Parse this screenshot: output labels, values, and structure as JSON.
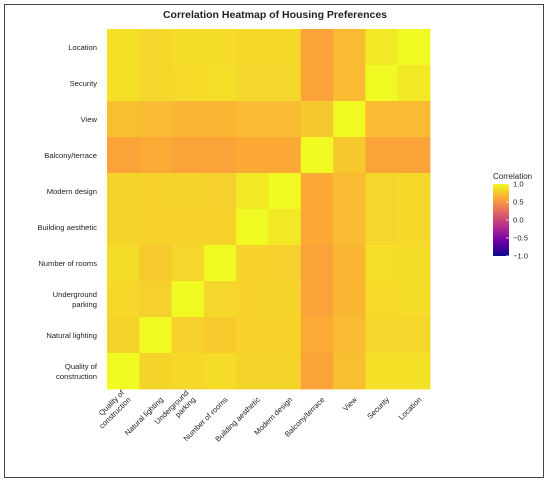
{
  "chart_data": {
    "type": "heatmap",
    "title": "Correlation Heatmap of Housing Preferences",
    "xlabel": "",
    "ylabel": "",
    "x_categories": [
      "Quality of construction",
      "Natural lighting",
      "Underground parking",
      "Number of rooms",
      "Building aesthetic",
      "Modern design",
      "Balcony/terrace",
      "View",
      "Security",
      "Location"
    ],
    "x_tick_lines": [
      [
        "Quality of",
        "construction"
      ],
      [
        "Natural lighting"
      ],
      [
        "Underground",
        "parking"
      ],
      [
        "Number of rooms"
      ],
      [
        "Building aesthetic"
      ],
      [
        "Modern design"
      ],
      [
        "Balcony/terrace"
      ],
      [
        "View"
      ],
      [
        "Security"
      ],
      [
        "Location"
      ]
    ],
    "y_categories_top_to_bottom": [
      "Location",
      "Security",
      "View",
      "Balcony/terrace",
      "Modern design",
      "Building aesthetic",
      "Number of rooms",
      "Underground parking",
      "Natural lighting",
      "Quality of construction"
    ],
    "y_tick_lines": [
      [
        "Location"
      ],
      [
        "Security"
      ],
      [
        "View"
      ],
      [
        "Balcony/terrace"
      ],
      [
        "Modern design"
      ],
      [
        "Building aesthetic"
      ],
      [
        "Number of rooms"
      ],
      [
        "Underground",
        "parking"
      ],
      [
        "Natural lighting"
      ],
      [
        "Quality of",
        "construction"
      ]
    ],
    "values_rows_top_to_bottom": [
      [
        0.88,
        0.83,
        0.86,
        0.86,
        0.84,
        0.84,
        0.58,
        0.7,
        0.92,
        1.0
      ],
      [
        0.88,
        0.83,
        0.85,
        0.87,
        0.83,
        0.83,
        0.58,
        0.7,
        1.0,
        0.92
      ],
      [
        0.72,
        0.7,
        0.67,
        0.67,
        0.7,
        0.7,
        0.76,
        1.0,
        0.7,
        0.7
      ],
      [
        0.58,
        0.62,
        0.58,
        0.58,
        0.61,
        0.61,
        1.0,
        0.76,
        0.58,
        0.58
      ],
      [
        0.82,
        0.81,
        0.82,
        0.8,
        0.92,
        1.0,
        0.61,
        0.7,
        0.83,
        0.84
      ],
      [
        0.82,
        0.81,
        0.81,
        0.81,
        1.0,
        0.92,
        0.61,
        0.7,
        0.83,
        0.84
      ],
      [
        0.86,
        0.77,
        0.83,
        1.0,
        0.81,
        0.8,
        0.58,
        0.67,
        0.87,
        0.86
      ],
      [
        0.84,
        0.8,
        1.0,
        0.83,
        0.81,
        0.82,
        0.58,
        0.67,
        0.85,
        0.86
      ],
      [
        0.82,
        1.0,
        0.8,
        0.77,
        0.81,
        0.81,
        0.62,
        0.7,
        0.83,
        0.83
      ],
      [
        1.0,
        0.82,
        0.84,
        0.86,
        0.82,
        0.82,
        0.58,
        0.72,
        0.88,
        0.88
      ]
    ],
    "color_scale": {
      "title": "Correlation",
      "range": [
        -1.0,
        1.0
      ],
      "ticks": [
        1.0,
        0.5,
        0.0,
        -0.5,
        -1.0
      ],
      "tick_labels": [
        "1.0",
        "0.5",
        "0.0",
        "−0.5",
        "−1.0"
      ],
      "stops": [
        "#0d0887",
        "#6a00a8",
        "#b12a90",
        "#e16462",
        "#fca636",
        "#f0f921"
      ]
    },
    "grid": false,
    "legend_position": "right"
  }
}
